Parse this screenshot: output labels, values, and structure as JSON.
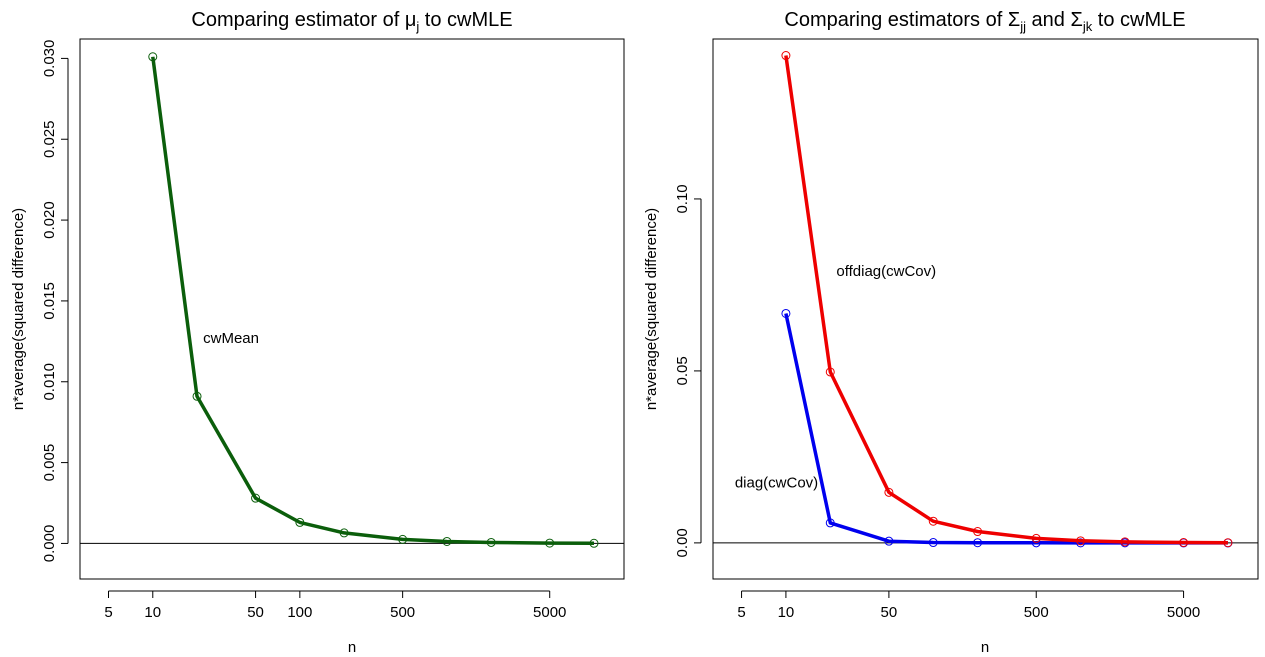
{
  "chart_data": [
    {
      "type": "line",
      "title": {
        "main": "Comparing estimator of ",
        "sym": "μ",
        "sub": "j",
        "rest": " to cwMLE"
      },
      "xlabel": "n",
      "ylabel": "n*average(squared difference)",
      "x_scale": "log",
      "xlim": [
        3.2,
        16000
      ],
      "ylim": [
        -0.0022,
        0.0312
      ],
      "x_ticks": [
        5,
        10,
        50,
        100,
        500,
        5000
      ],
      "x_tick_labels": [
        "5",
        "10",
        "50",
        "100",
        "500",
        "5000"
      ],
      "y_ticks": [
        0,
        0.005,
        0.01,
        0.015,
        0.02,
        0.025,
        0.03
      ],
      "y_tick_labels": [
        "0.000",
        "0.005",
        "0.010",
        "0.015",
        "0.020",
        "0.025",
        "0.030"
      ],
      "reference_line_y": 0,
      "series": [
        {
          "name": "cwMean",
          "color": "#0b5e0b",
          "x": [
            10,
            20,
            50,
            100,
            200,
            500,
            1000,
            2000,
            5000,
            10000
          ],
          "y": [
            0.0301,
            0.0091,
            0.0028,
            0.0013,
            0.00065,
            0.00025,
            0.00012,
            6e-05,
            2e-05,
            1e-05
          ]
        }
      ],
      "annotations": [
        {
          "text": "cwMean",
          "x": 22,
          "y": 0.0127
        }
      ]
    },
    {
      "type": "line",
      "title": {
        "main": "Comparing estimators of ",
        "sym1": "Σ",
        "sub1": "jj",
        "mid": " and ",
        "sym2": "Σ",
        "sub2": "jk",
        "rest": " to cwMLE"
      },
      "xlabel": "n",
      "ylabel": "n*average(squared difference)",
      "x_scale": "log",
      "xlim": [
        3.2,
        16000
      ],
      "ylim": [
        -0.0105,
        0.1465
      ],
      "x_ticks": [
        5,
        10,
        50,
        500,
        5000
      ],
      "x_tick_labels": [
        "5",
        "10",
        "50",
        "500",
        "5000"
      ],
      "y_ticks": [
        0,
        0.05,
        0.1
      ],
      "y_tick_labels": [
        "0.00",
        "0.05",
        "0.10"
      ],
      "reference_line_y": 0,
      "series": [
        {
          "name": "diag(cwCov)",
          "color": "#0000ee",
          "x": [
            10,
            20,
            50,
            100,
            200,
            500,
            1000,
            2000,
            5000,
            10000
          ],
          "y": [
            0.0667,
            0.0058,
            0.0005,
            0.0001,
            5e-05,
            2e-05,
            1e-05,
            1e-05,
            0.0,
            0.0
          ]
        },
        {
          "name": "offdiag(cwCov)",
          "color": "#ee0000",
          "x": [
            10,
            20,
            50,
            100,
            200,
            500,
            1000,
            2000,
            5000,
            10000
          ],
          "y": [
            0.1417,
            0.0497,
            0.0147,
            0.0063,
            0.0033,
            0.0013,
            0.0006,
            0.0003,
            0.0001,
            5e-05
          ]
        }
      ],
      "annotations": [
        {
          "text": "offdiag(cwCov)",
          "x": 22,
          "y": 0.079
        },
        {
          "text": "diag(cwCov)",
          "x": 4.5,
          "y": 0.0175
        }
      ]
    }
  ]
}
